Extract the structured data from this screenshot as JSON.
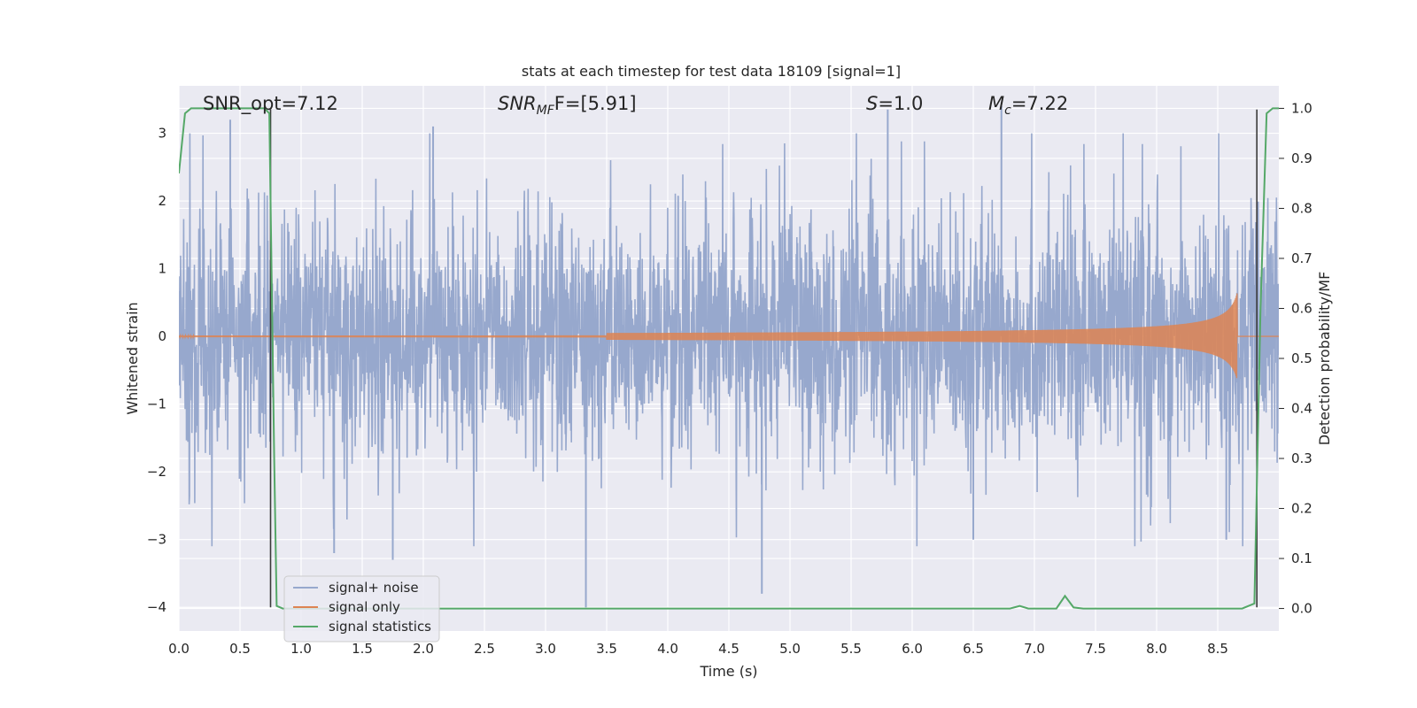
{
  "chart_data": {
    "type": "line",
    "title": "stats at each timestep for test data 18109 [signal=1]",
    "xlabel": "Time (s)",
    "ylabel_left": "Whitened strain",
    "ylabel_right": "Detection probability/MF",
    "xlim": [
      0,
      9.0
    ],
    "ylim_left": [
      -4.35,
      3.7
    ],
    "ylim_right": [
      -0.045,
      1.045
    ],
    "x_ticks": [
      "0.0",
      "0.5",
      "1.0",
      "1.5",
      "2.0",
      "2.5",
      "3.0",
      "3.5",
      "4.0",
      "4.5",
      "5.0",
      "5.5",
      "6.0",
      "6.5",
      "7.0",
      "7.5",
      "8.0",
      "8.5"
    ],
    "y_left_ticks": [
      "−4",
      "−3",
      "−2",
      "−1",
      "0",
      "1",
      "2",
      "3"
    ],
    "y_right_ticks": [
      "0.0",
      "0.1",
      "0.2",
      "0.3",
      "0.4",
      "0.5",
      "0.6",
      "0.7",
      "0.8",
      "0.9",
      "1.0"
    ],
    "grid": true,
    "legend_position": "lower-left",
    "annotations": {
      "snr_opt": "SNR_opt=7.12",
      "snr_mf_main": "SNR",
      "snr_mf_sub": "MF",
      "snr_mf_rest": "F=[5.91]",
      "s_main": "S",
      "s_rest": "=1.0",
      "mc_main": "M",
      "mc_sub": "c",
      "mc_rest": "=7.22"
    },
    "series": [
      {
        "name": "signal+ noise",
        "color": "#97a8cd",
        "axis": "left",
        "x_range": [
          0,
          9.0
        ],
        "amplitude_typical": 1.6,
        "peaks": [
          {
            "x": 0.42,
            "y": 3.2
          },
          {
            "x": 3.33,
            "y": -4.0
          },
          {
            "x": 4.77,
            "y": -3.8
          },
          {
            "x": 5.8,
            "y": 3.35
          },
          {
            "x": 6.73,
            "y": 3.4
          },
          {
            "x": 2.08,
            "y": 3.1
          },
          {
            "x": 1.27,
            "y": -3.2
          },
          {
            "x": 1.75,
            "y": -3.3
          },
          {
            "x": 6.5,
            "y": -3.0
          },
          {
            "x": 8.57,
            "y": -3.0
          }
        ]
      },
      {
        "name": "signal only",
        "color": "#dd8452",
        "axis": "left",
        "x_range": [
          0,
          9.0
        ],
        "envelope_start": 3.5,
        "merger_time": 8.66,
        "peak_amplitude": 0.65
      },
      {
        "name": "signal statistics",
        "color": "#55a868",
        "axis": "right",
        "x": [
          0,
          0.05,
          0.1,
          0.3,
          0.6,
          0.7,
          0.74,
          0.78,
          0.8,
          0.85,
          0.9,
          1.5,
          3.0,
          5.0,
          6.5,
          6.8,
          6.88,
          6.95,
          7.0,
          7.1,
          7.18,
          7.25,
          7.32,
          7.4,
          7.6,
          8.0,
          8.5,
          8.7,
          8.8,
          8.85,
          8.9,
          8.95,
          9.0
        ],
        "y": [
          0.87,
          0.99,
          1.0,
          1.0,
          1.0,
          1.0,
          0.99,
          0.3,
          0.005,
          0.0,
          0.0,
          0.0,
          0.0,
          0.0,
          0.0,
          0.0,
          0.005,
          0.0,
          0.0,
          0.0,
          0.0,
          0.025,
          0.002,
          0.0,
          0.0,
          0.0,
          0.0,
          0.0,
          0.01,
          0.6,
          0.99,
          1.0,
          1.0
        ]
      }
    ],
    "vertical_lines": [
      {
        "x": 0.75,
        "y_from": -4.0,
        "y_to": 3.35,
        "color": "#3a3a3a"
      },
      {
        "x": 8.82,
        "y_from": -4.0,
        "y_to": 3.35,
        "color": "#3a3a3a"
      }
    ]
  }
}
